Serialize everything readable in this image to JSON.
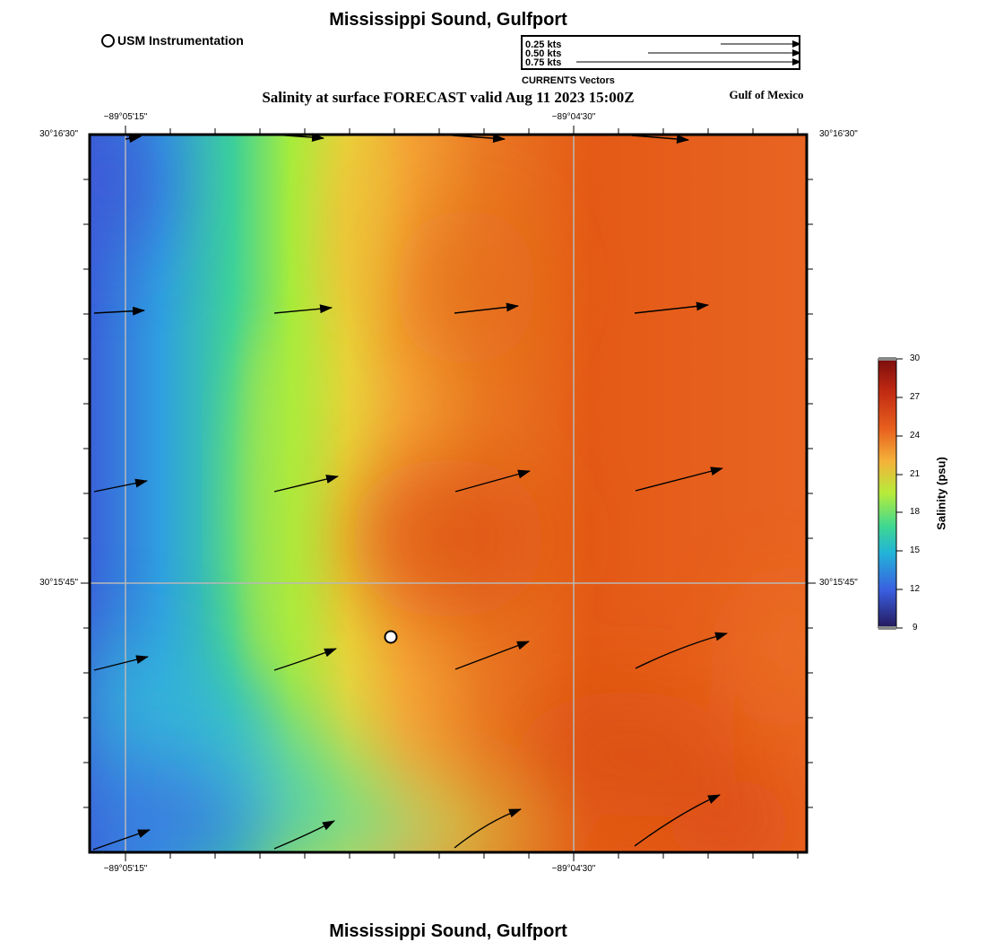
{
  "title": "Mississippi Sound, Gulfport",
  "footer_title": "Mississippi Sound, Gulfport",
  "subtitle": "Salinity at surface FORECAST valid Aug 11 2023 15:00Z",
  "region_label": "Gulf of Mexico",
  "station_legend": {
    "label": "USM Instrumentation",
    "icon": "open-circle-icon"
  },
  "vector_scale": {
    "entries": [
      "0.25 kts",
      "0.50 kts",
      "0.75 kts"
    ],
    "caption": "CURRENTS Vectors"
  },
  "axes": {
    "longitude_ticks": [
      "−89°05'15\"",
      "−89°04'30\""
    ],
    "latitude_ticks": [
      "30°16'30\"",
      "30°15'45\""
    ]
  },
  "colorbar": {
    "title": "Salinity (psu)",
    "ticks": [
      "30",
      "27",
      "24",
      "21",
      "18",
      "15",
      "12",
      "9"
    ],
    "range": [
      9,
      30
    ]
  },
  "colors": {
    "low_salinity": "#3e64d8",
    "mid_salinity": "#a6ec3c",
    "high_salinity": "#e25a14"
  }
}
